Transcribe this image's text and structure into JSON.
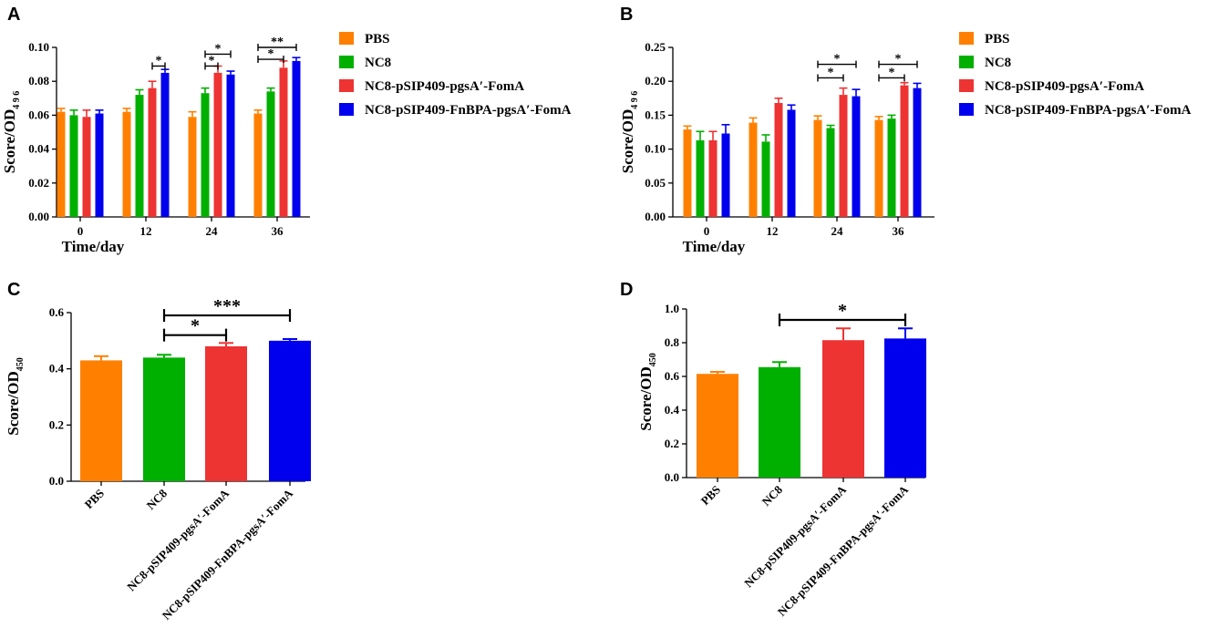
{
  "figure": {
    "legend_colors": [
      "#ff8000",
      "#00b000",
      "#ee3333",
      "#0000ee"
    ],
    "legend_labels": [
      "PBS",
      "NC8",
      "NC8-pSIP409-pgsA′-FomA",
      "NC8-pSIP409-FnBPA-pgsA′-FomA"
    ]
  },
  "chart_data": [
    {
      "panel": "A",
      "type": "bar",
      "ylabel": "Score/OD",
      "ylabel_sub": "4 9 6",
      "xlabel": "Time/day",
      "ylim": [
        0,
        0.1
      ],
      "yticks": [
        "0.00",
        "0.02",
        "0.04",
        "0.06",
        "0.08",
        "0.10"
      ],
      "ytick_values": [
        0,
        0.02,
        0.04,
        0.06,
        0.08,
        0.1
      ],
      "categories": [
        "0",
        "12",
        "24",
        "36"
      ],
      "series": [
        {
          "name": "PBS",
          "values": [
            0.062,
            0.062,
            0.059,
            0.061
          ],
          "errors": [
            0.002,
            0.002,
            0.003,
            0.002
          ]
        },
        {
          "name": "NC8",
          "values": [
            0.06,
            0.072,
            0.073,
            0.074
          ],
          "errors": [
            0.003,
            0.003,
            0.003,
            0.002
          ]
        },
        {
          "name": "NC8-pSIP409-pgsA′-FomA",
          "values": [
            0.059,
            0.076,
            0.085,
            0.088
          ],
          "errors": [
            0.004,
            0.004,
            0.004,
            0.004
          ]
        },
        {
          "name": "NC8-pSIP409-FnBPA-pgsA′-FomA",
          "values": [
            0.061,
            0.085,
            0.084,
            0.092
          ],
          "errors": [
            0.002,
            0.002,
            0.002,
            0.002
          ]
        }
      ],
      "sig": [
        {
          "cat": 1,
          "from": 2,
          "to": 3,
          "y": 0.089,
          "label": "*"
        },
        {
          "cat": 2,
          "from": 1,
          "to": 3,
          "y": 0.096,
          "label": "*"
        },
        {
          "cat": 2,
          "from": 1,
          "to": 2,
          "y": 0.089,
          "label": "*"
        },
        {
          "cat": 3,
          "from": 0,
          "to": 3,
          "y": 0.1,
          "label": "**"
        },
        {
          "cat": 3,
          "from": 0,
          "to": 2,
          "y": 0.093,
          "label": "*"
        }
      ]
    },
    {
      "panel": "B",
      "type": "bar",
      "ylabel": "Score/OD",
      "ylabel_sub": "4 9 6",
      "xlabel": "Time/day",
      "ylim": [
        0,
        0.25
      ],
      "yticks": [
        "0.00",
        "0.05",
        "0.10",
        "0.15",
        "0.20",
        "0.25"
      ],
      "ytick_values": [
        0,
        0.05,
        0.1,
        0.15,
        0.2,
        0.25
      ],
      "categories": [
        "0",
        "12",
        "24",
        "36"
      ],
      "series": [
        {
          "name": "PBS",
          "values": [
            0.129,
            0.139,
            0.143,
            0.143
          ],
          "errors": [
            0.005,
            0.007,
            0.006,
            0.005
          ]
        },
        {
          "name": "NC8",
          "values": [
            0.113,
            0.111,
            0.131,
            0.145
          ],
          "errors": [
            0.013,
            0.01,
            0.004,
            0.005
          ]
        },
        {
          "name": "NC8-pSIP409-pgsA′-FomA",
          "values": [
            0.113,
            0.168,
            0.18,
            0.194
          ],
          "errors": [
            0.013,
            0.007,
            0.01,
            0.004
          ]
        },
        {
          "name": "NC8-pSIP409-FnBPA-pgsA′-FomA",
          "values": [
            0.123,
            0.158,
            0.178,
            0.19
          ],
          "errors": [
            0.013,
            0.007,
            0.01,
            0.007
          ]
        }
      ],
      "sig": [
        {
          "cat": 2,
          "from": 0,
          "to": 3,
          "y": 0.225,
          "label": "*"
        },
        {
          "cat": 2,
          "from": 0,
          "to": 2,
          "y": 0.205,
          "label": "*"
        },
        {
          "cat": 3,
          "from": 0,
          "to": 3,
          "y": 0.225,
          "label": "*"
        },
        {
          "cat": 3,
          "from": 0,
          "to": 2,
          "y": 0.205,
          "label": "*"
        }
      ]
    },
    {
      "panel": "C",
      "type": "bar",
      "ylabel": "Score/OD",
      "ylabel_sub": "450",
      "ylim": [
        0,
        0.6
      ],
      "yticks": [
        "0.0",
        "0.2",
        "0.4",
        "0.6"
      ],
      "ytick_values": [
        0,
        0.2,
        0.4,
        0.6
      ],
      "categories": [
        "PBS",
        "NC8",
        "NC8-pSIP409-pgsA′-FomA",
        "NC8-pSIP409-FnBPA-pgsA′-FomA"
      ],
      "values": [
        0.43,
        0.44,
        0.48,
        0.5
      ],
      "errors": [
        0.015,
        0.01,
        0.012,
        0.006
      ],
      "sig": [
        {
          "from": 1,
          "to": 3,
          "y": 0.59,
          "label": "***"
        },
        {
          "from": 1,
          "to": 2,
          "y": 0.52,
          "label": "*"
        }
      ]
    },
    {
      "panel": "D",
      "type": "bar",
      "ylabel": "Score/OD",
      "ylabel_sub": "450",
      "ylim": [
        0,
        1.0
      ],
      "yticks": [
        "0.0",
        "0.2",
        "0.4",
        "0.6",
        "0.8",
        "1.0"
      ],
      "ytick_values": [
        0,
        0.2,
        0.4,
        0.6,
        0.8,
        1.0
      ],
      "categories": [
        "PBS",
        "NC8",
        "NC8-pSIP409-pgsA′-FomA",
        "NC8-pSIP409-FnBPA-pgsA′-FomA"
      ],
      "values": [
        0.615,
        0.655,
        0.815,
        0.825
      ],
      "errors": [
        0.012,
        0.03,
        0.07,
        0.06
      ],
      "sig": [
        {
          "from": 1,
          "to": 3,
          "y": 0.935,
          "label": "*"
        }
      ]
    }
  ]
}
